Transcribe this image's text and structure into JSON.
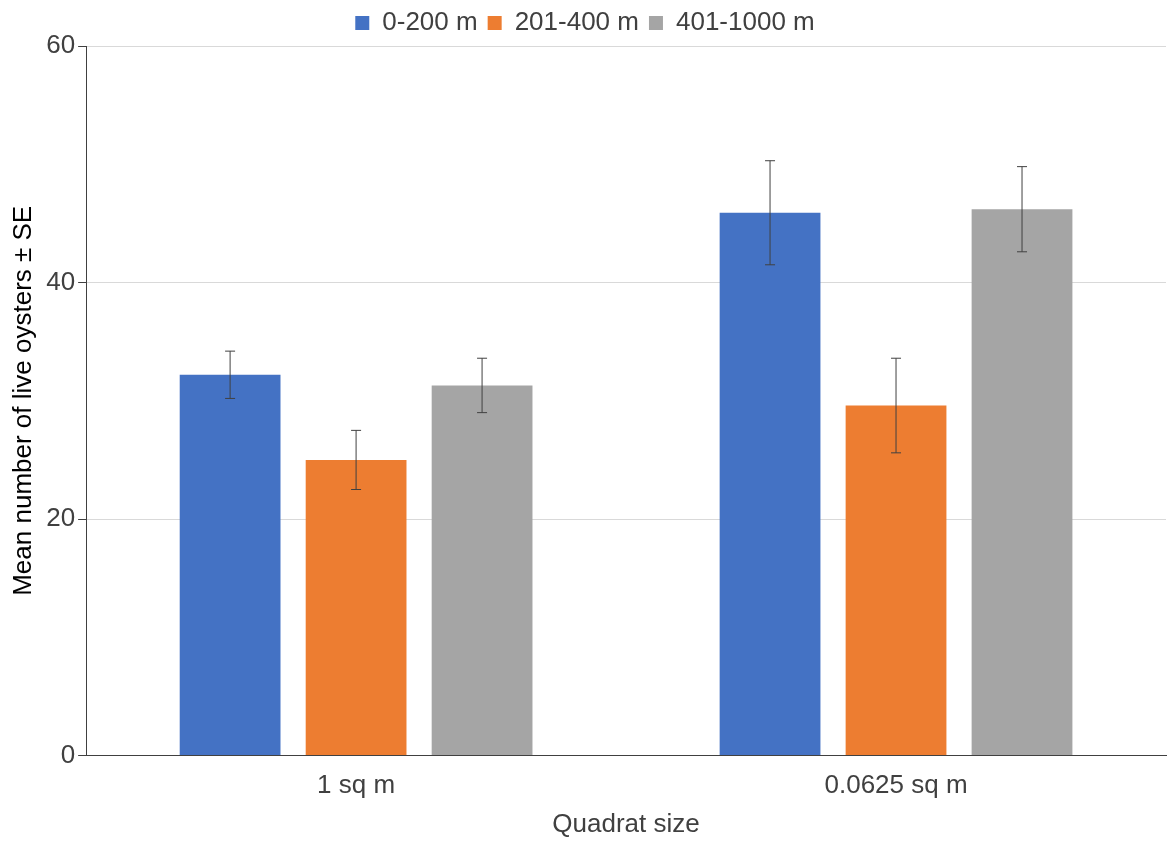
{
  "chart_data": {
    "type": "bar",
    "xlabel": "Quadrat size",
    "ylabel": "Mean number of live oysters ± SE",
    "categories": [
      "1 sq m",
      "0.0625 sq m"
    ],
    "series": [
      {
        "name": "0-200 m",
        "color": "#4472c4",
        "values": [
          32.2,
          45.9
        ],
        "errors": [
          2.0,
          4.4
        ]
      },
      {
        "name": "201-400 m",
        "color": "#ed7d31",
        "values": [
          25.0,
          29.6
        ],
        "errors": [
          2.5,
          4.0
        ]
      },
      {
        "name": "401-1000 m",
        "color": "#a5a5a5",
        "values": [
          31.3,
          46.2
        ],
        "errors": [
          2.3,
          3.6
        ]
      }
    ],
    "ylim": [
      0,
      60
    ],
    "yticks": [
      0,
      20,
      40,
      60
    ],
    "grid": "y",
    "legend": "top"
  }
}
